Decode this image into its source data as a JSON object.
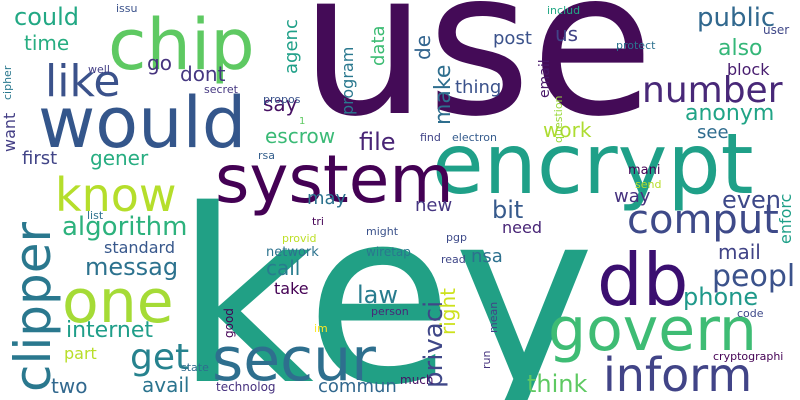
{
  "words": [
    {
      "text": "key",
      "color": "#21a085"
    },
    {
      "text": "use",
      "color": "#440b57"
    },
    {
      "text": "encrypt",
      "color": "#1fa088"
    },
    {
      "text": "would",
      "color": "#34568b"
    },
    {
      "text": "chip",
      "color": "#5ec962"
    },
    {
      "text": "system",
      "color": "#440154"
    },
    {
      "text": "one",
      "color": "#a5db36"
    },
    {
      "text": "secur",
      "color": "#2e6f8e"
    },
    {
      "text": "db",
      "color": "#3b0f70"
    },
    {
      "text": "govern",
      "color": "#3ebc74"
    },
    {
      "text": "clipper",
      "color": "#2a788e"
    },
    {
      "text": "inform",
      "color": "#414487"
    },
    {
      "text": "know",
      "color": "#b5de2b"
    },
    {
      "text": "like",
      "color": "#3b528b"
    },
    {
      "text": "comput",
      "color": "#3e4a89"
    },
    {
      "text": "number",
      "color": "#482878"
    },
    {
      "text": "get",
      "color": "#26828e"
    },
    {
      "text": "could",
      "color": "#22a884"
    },
    {
      "text": "public",
      "color": "#31688e"
    },
    {
      "text": "peopl",
      "color": "#3b528b"
    },
    {
      "text": "algorithm",
      "color": "#2db27d"
    },
    {
      "text": "messag",
      "color": "#2c728e"
    },
    {
      "text": "file",
      "color": "#482475"
    },
    {
      "text": "bit",
      "color": "#375a8c"
    },
    {
      "text": "privaci",
      "color": "#3f4788"
    },
    {
      "text": "phone",
      "color": "#1f998a"
    },
    {
      "text": "internet",
      "color": "#1f9e89"
    },
    {
      "text": "law",
      "color": "#287c8e"
    },
    {
      "text": "think",
      "color": "#5ec962"
    },
    {
      "text": "even",
      "color": "#3e4989"
    },
    {
      "text": "time",
      "color": "#27ad81"
    },
    {
      "text": "dont",
      "color": "#453781"
    },
    {
      "text": "go",
      "color": "#46337e"
    },
    {
      "text": "make",
      "color": "#2e6e8e"
    },
    {
      "text": "also",
      "color": "#35b779"
    },
    {
      "text": "anonym",
      "color": "#20a486"
    },
    {
      "text": "work",
      "color": "#addc30"
    },
    {
      "text": "escrow",
      "color": "#3aba76"
    },
    {
      "text": "gener",
      "color": "#27ad81"
    },
    {
      "text": "call",
      "color": "#287d8e"
    },
    {
      "text": "mail",
      "color": "#414487"
    },
    {
      "text": "avail",
      "color": "#2b748e"
    },
    {
      "text": "two",
      "color": "#31688e"
    },
    {
      "text": "commun",
      "color": "#31688e"
    },
    {
      "text": "right",
      "color": "#cde11d"
    },
    {
      "text": "say",
      "color": "#471063"
    },
    {
      "text": "de",
      "color": "#32648e"
    },
    {
      "text": "agenc",
      "color": "#1fa088"
    },
    {
      "text": "data",
      "color": "#3dbc74"
    },
    {
      "text": "us",
      "color": "#414487"
    },
    {
      "text": "post",
      "color": "#3b528b"
    },
    {
      "text": "program",
      "color": "#2a788e"
    },
    {
      "text": "thing",
      "color": "#3b528b"
    },
    {
      "text": "first",
      "color": "#414487"
    },
    {
      "text": "want",
      "color": "#433e85"
    },
    {
      "text": "new",
      "color": "#453581"
    },
    {
      "text": "may",
      "color": "#2c728e"
    },
    {
      "text": "standard",
      "color": "#38588c"
    },
    {
      "text": "need",
      "color": "#482576"
    },
    {
      "text": "way",
      "color": "#46327e"
    },
    {
      "text": "see",
      "color": "#2f6c8e"
    },
    {
      "text": "block",
      "color": "#481d6f"
    },
    {
      "text": "enforc",
      "color": "#1fa088"
    },
    {
      "text": "nsa",
      "color": "#2d718e"
    },
    {
      "text": "take",
      "color": "#440154"
    },
    {
      "text": "part",
      "color": "#b8de29"
    },
    {
      "text": "email",
      "color": "#481769"
    },
    {
      "text": "user",
      "color": "#3f4788"
    },
    {
      "text": "network",
      "color": "#2c728e"
    },
    {
      "text": "wiretap",
      "color": "#2a778e"
    },
    {
      "text": "question",
      "color": "#9bd93c"
    },
    {
      "text": "protect",
      "color": "#2c718e"
    },
    {
      "text": "includ",
      "color": "#22a884"
    },
    {
      "text": "issu",
      "color": "#3b528b"
    },
    {
      "text": "secret",
      "color": "#453781"
    },
    {
      "text": "propos",
      "color": "#3b528b"
    },
    {
      "text": "find",
      "color": "#414487"
    },
    {
      "text": "electron",
      "color": "#365c8d"
    },
    {
      "text": "rsa",
      "color": "#35608d"
    },
    {
      "text": "cipher",
      "color": "#2a788e"
    },
    {
      "text": "well",
      "color": "#433e85"
    },
    {
      "text": "list",
      "color": "#2d718e"
    },
    {
      "text": "tri",
      "color": "#440154"
    },
    {
      "text": "might",
      "color": "#3b528b"
    },
    {
      "text": "pgp",
      "color": "#3e4a89"
    },
    {
      "text": "provid",
      "color": "#bddf26"
    },
    {
      "text": "read",
      "color": "#3f4788"
    },
    {
      "text": "mani",
      "color": "#440154"
    },
    {
      "text": "send",
      "color": "#b8de29"
    },
    {
      "text": "code",
      "color": "#3e4989"
    },
    {
      "text": "good",
      "color": "#440154"
    },
    {
      "text": "im",
      "color": "#fde725"
    },
    {
      "text": "person",
      "color": "#482878"
    },
    {
      "text": "run",
      "color": "#46337e"
    },
    {
      "text": "mean",
      "color": "#414487"
    },
    {
      "text": "state",
      "color": "#2f6c8e"
    },
    {
      "text": "technolog",
      "color": "#46307e"
    },
    {
      "text": "much",
      "color": "#471365"
    },
    {
      "text": "cryptographi",
      "color": "#440154"
    },
    {
      "text": "1",
      "color": "#5ec962"
    }
  ]
}
